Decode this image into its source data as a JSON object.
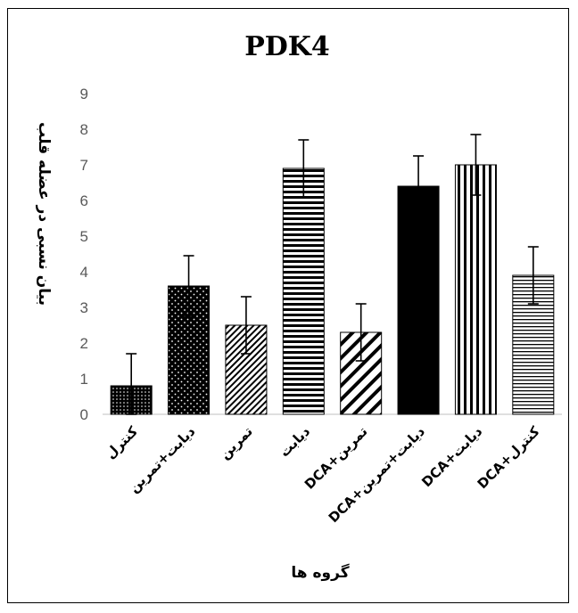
{
  "chart_data": {
    "type": "bar",
    "title": "PDK4",
    "ylabel": "بیان نسبی در عضله قلب",
    "xlabel": "گروه ها",
    "ylim": [
      0,
      9
    ],
    "yticks": [
      0,
      1,
      2,
      3,
      4,
      5,
      6,
      7,
      8,
      9
    ],
    "grid": false,
    "categories": [
      "کنترل",
      "دیابت+تمرین",
      "تمرین",
      "دیابت",
      "DCA+تمرین",
      "DCA+دیابت+تمرین",
      "DCA+دیابت",
      "DCA+کنترل"
    ],
    "values": [
      0.8,
      3.6,
      2.5,
      6.9,
      2.3,
      6.4,
      7.0,
      3.9
    ],
    "errors": [
      0.9,
      0.85,
      0.8,
      0.8,
      0.8,
      0.85,
      0.85,
      0.8
    ],
    "patterns": [
      "dots-dense",
      "dots",
      "diagonal-fine",
      "horizontal-thick",
      "diagonal-wide",
      "solid",
      "vertical",
      "horizontal-thin"
    ]
  }
}
